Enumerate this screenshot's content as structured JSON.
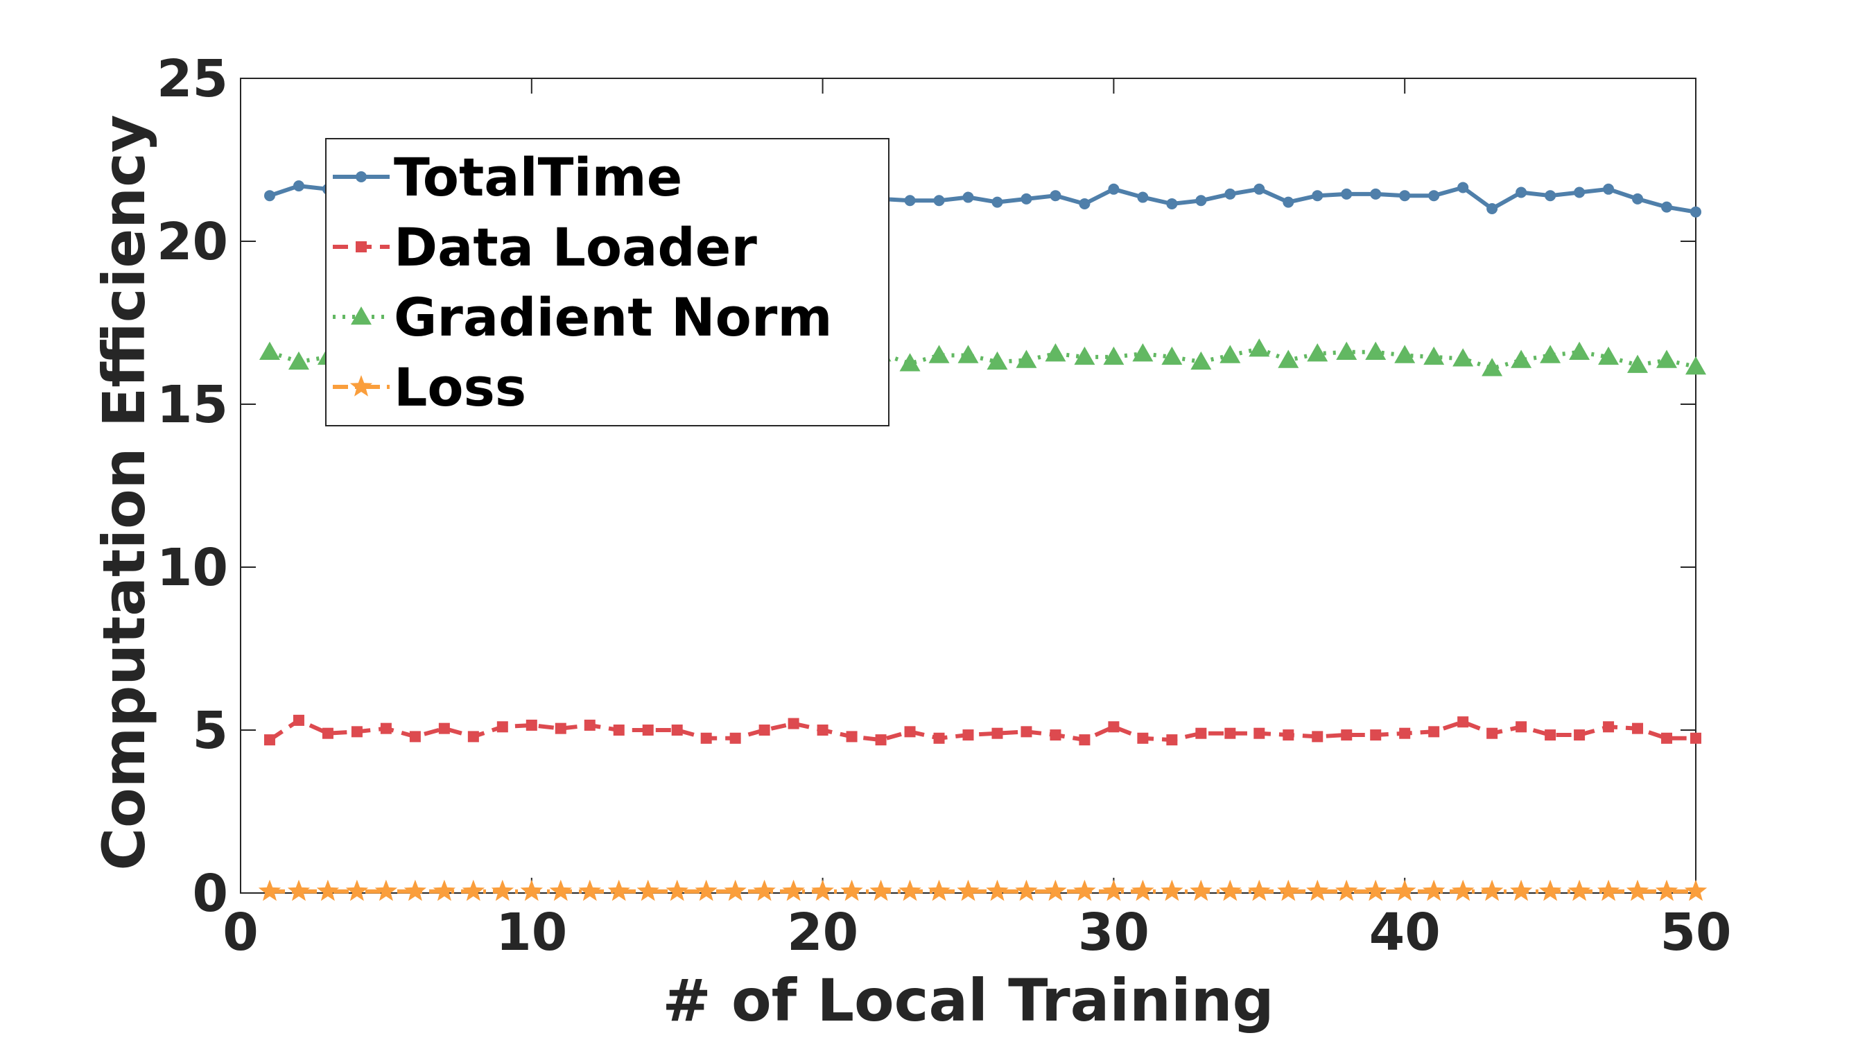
{
  "chart_data": {
    "type": "line",
    "xlabel": "# of Local Training",
    "ylabel": "Computation Efficiency",
    "xlim": [
      0,
      50
    ],
    "ylim": [
      0,
      25
    ],
    "xticks": [
      "0",
      "10",
      "20",
      "30",
      "40",
      "50"
    ],
    "yticks": [
      "0",
      "5",
      "10",
      "15",
      "20",
      "25"
    ],
    "grid": false,
    "legend_position": "top-left",
    "x": [
      1,
      2,
      3,
      4,
      5,
      6,
      7,
      8,
      9,
      10,
      11,
      12,
      13,
      14,
      15,
      16,
      17,
      18,
      19,
      20,
      21,
      22,
      23,
      24,
      25,
      26,
      27,
      28,
      29,
      30,
      31,
      32,
      33,
      34,
      35,
      36,
      37,
      38,
      39,
      40,
      41,
      42,
      43,
      44,
      45,
      46,
      47,
      48,
      49,
      50
    ],
    "series": [
      {
        "name": "TotalTime",
        "color": "#4f7faa",
        "line_style": "solid",
        "marker": "point",
        "values": [
          21.4,
          21.7,
          21.6,
          21.5,
          21.4,
          21.5,
          21.4,
          21.5,
          21.4,
          21.5,
          21.6,
          21.3,
          21.4,
          21.5,
          21.4,
          21.3,
          21.5,
          21.4,
          21.6,
          21.3,
          21.3,
          21.3,
          21.25,
          21.25,
          21.35,
          21.2,
          21.3,
          21.4,
          21.15,
          21.6,
          21.35,
          21.15,
          21.25,
          21.45,
          21.6,
          21.2,
          21.4,
          21.45,
          21.45,
          21.4,
          21.4,
          21.65,
          21.0,
          21.5,
          21.4,
          21.5,
          21.6,
          21.3,
          21.05,
          20.9
        ]
      },
      {
        "name": "Data Loader",
        "color": "#dd4a4f",
        "line_style": "dashed",
        "marker": "square",
        "values": [
          4.7,
          5.3,
          4.9,
          4.95,
          5.05,
          4.8,
          5.05,
          4.8,
          5.1,
          5.15,
          5.05,
          5.15,
          5.0,
          5.0,
          5.0,
          4.75,
          4.75,
          5.0,
          5.2,
          5.0,
          4.8,
          4.7,
          4.95,
          4.75,
          4.85,
          4.9,
          4.95,
          4.85,
          4.7,
          5.1,
          4.75,
          4.7,
          4.9,
          4.9,
          4.9,
          4.85,
          4.8,
          4.85,
          4.85,
          4.9,
          4.95,
          5.25,
          4.9,
          5.1,
          4.85,
          4.85,
          5.1,
          5.05,
          4.75,
          4.75
        ]
      },
      {
        "name": "Gradient Norm",
        "color": "#62b862",
        "line_style": "dotted",
        "marker": "triangle",
        "values": [
          16.6,
          16.3,
          16.45,
          16.5,
          16.4,
          16.55,
          16.45,
          16.5,
          16.4,
          16.5,
          16.55,
          16.45,
          16.5,
          16.4,
          16.5,
          16.45,
          16.5,
          16.45,
          16.55,
          16.5,
          16.45,
          16.55,
          16.25,
          16.5,
          16.5,
          16.3,
          16.35,
          16.55,
          16.45,
          16.45,
          16.55,
          16.45,
          16.3,
          16.5,
          16.7,
          16.35,
          16.55,
          16.6,
          16.6,
          16.5,
          16.45,
          16.4,
          16.1,
          16.35,
          16.5,
          16.6,
          16.45,
          16.2,
          16.35,
          16.15
        ]
      },
      {
        "name": "Loss",
        "color": "#fa9e3c",
        "line_style": "dashdot",
        "marker": "star",
        "values": [
          0.05,
          0.05,
          0.05,
          0.05,
          0.05,
          0.05,
          0.05,
          0.05,
          0.05,
          0.05,
          0.05,
          0.05,
          0.05,
          0.05,
          0.05,
          0.05,
          0.05,
          0.05,
          0.05,
          0.05,
          0.05,
          0.05,
          0.05,
          0.05,
          0.05,
          0.05,
          0.05,
          0.05,
          0.05,
          0.05,
          0.05,
          0.05,
          0.05,
          0.05,
          0.05,
          0.05,
          0.05,
          0.05,
          0.05,
          0.05,
          0.05,
          0.05,
          0.05,
          0.05,
          0.05,
          0.05,
          0.05,
          0.05,
          0.05,
          0.05
        ]
      }
    ]
  }
}
